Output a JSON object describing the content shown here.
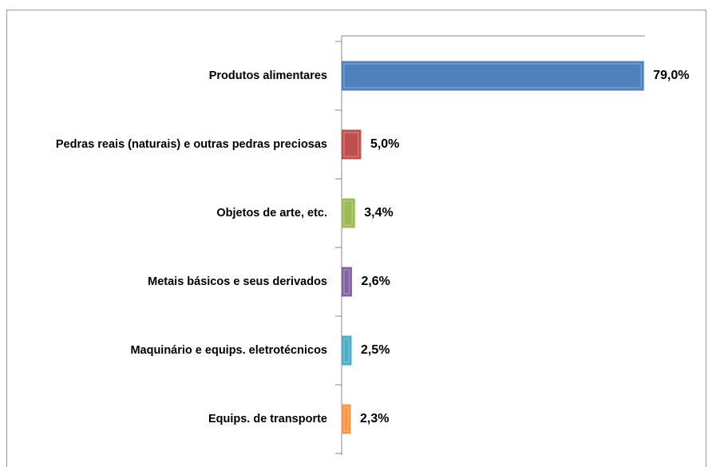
{
  "chart_data": {
    "type": "bar",
    "orientation": "horizontal",
    "categories": [
      "Produtos alimentares",
      "Pedras reais (naturais) e outras pedras preciosas",
      "Objetos de arte, etc.",
      "Metais básicos e seus derivados",
      "Maquinário e equips. eletrotécnicos",
      "Equips. de transporte"
    ],
    "values": [
      79.0,
      5.0,
      3.4,
      2.6,
      2.5,
      2.3
    ],
    "value_labels": [
      "79,0%",
      "5,0%",
      "3,4%",
      "2,6%",
      "2,5%",
      "2,3%"
    ],
    "colors": [
      "#4f81bd",
      "#c0504d",
      "#9bbb59",
      "#8064a2",
      "#4bacc6",
      "#f79646"
    ],
    "xlim": [
      0,
      80
    ]
  }
}
